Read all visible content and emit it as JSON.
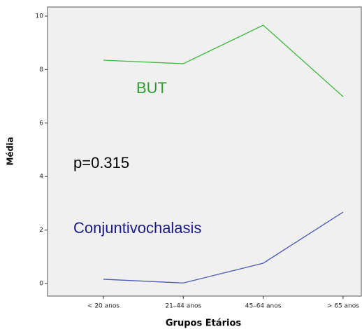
{
  "chart_data": {
    "type": "line",
    "x_label": "Grupos Etários",
    "y_label": "Média",
    "categories": [
      "< 20 anos",
      "21–44 anos",
      "45–64 anos",
      "> 65 anos"
    ],
    "series": [
      {
        "name": "BUT",
        "color": "#3cba3c",
        "values": [
          8.35,
          8.22,
          9.66,
          6.99
        ]
      },
      {
        "name": "Conjuntivochalasis",
        "color": "#4a5ab8",
        "values": [
          0.16,
          0.02,
          0.76,
          2.67
        ]
      }
    ],
    "annotations": [
      "BUT",
      "p=0.315",
      "Conjuntivochalasis"
    ],
    "ylim": [
      -0.47,
      10.34
    ],
    "yticks": [
      0,
      2,
      4,
      6,
      8,
      10
    ]
  }
}
